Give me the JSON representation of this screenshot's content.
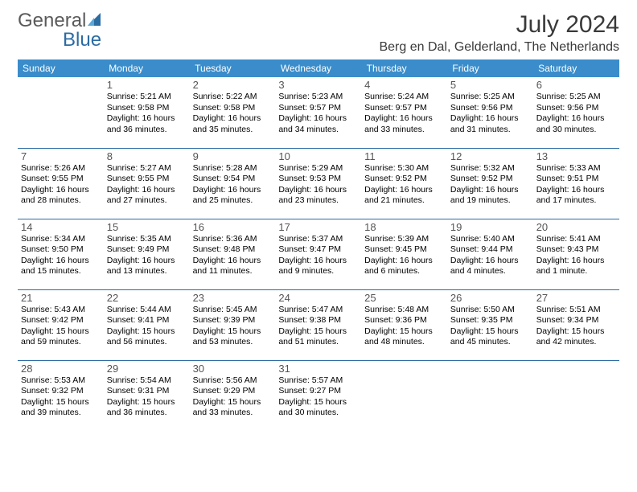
{
  "logo": {
    "gray": "General",
    "blue": "Blue"
  },
  "title": "July 2024",
  "location": "Berg en Dal, Gelderland, The Netherlands",
  "colors": {
    "header_bg": "#3a8dca",
    "header_text": "#ffffff",
    "sep_line": "#2b6ca3",
    "logo_gray": "#5a5a5a",
    "logo_blue": "#2b6ca3"
  },
  "day_names": [
    "Sunday",
    "Monday",
    "Tuesday",
    "Wednesday",
    "Thursday",
    "Friday",
    "Saturday"
  ],
  "weeks": [
    [
      null,
      {
        "n": "1",
        "sr": "5:21 AM",
        "ss": "9:58 PM",
        "dl": "16 hours and 36 minutes."
      },
      {
        "n": "2",
        "sr": "5:22 AM",
        "ss": "9:58 PM",
        "dl": "16 hours and 35 minutes."
      },
      {
        "n": "3",
        "sr": "5:23 AM",
        "ss": "9:57 PM",
        "dl": "16 hours and 34 minutes."
      },
      {
        "n": "4",
        "sr": "5:24 AM",
        "ss": "9:57 PM",
        "dl": "16 hours and 33 minutes."
      },
      {
        "n": "5",
        "sr": "5:25 AM",
        "ss": "9:56 PM",
        "dl": "16 hours and 31 minutes."
      },
      {
        "n": "6",
        "sr": "5:25 AM",
        "ss": "9:56 PM",
        "dl": "16 hours and 30 minutes."
      }
    ],
    [
      {
        "n": "7",
        "sr": "5:26 AM",
        "ss": "9:55 PM",
        "dl": "16 hours and 28 minutes."
      },
      {
        "n": "8",
        "sr": "5:27 AM",
        "ss": "9:55 PM",
        "dl": "16 hours and 27 minutes."
      },
      {
        "n": "9",
        "sr": "5:28 AM",
        "ss": "9:54 PM",
        "dl": "16 hours and 25 minutes."
      },
      {
        "n": "10",
        "sr": "5:29 AM",
        "ss": "9:53 PM",
        "dl": "16 hours and 23 minutes."
      },
      {
        "n": "11",
        "sr": "5:30 AM",
        "ss": "9:52 PM",
        "dl": "16 hours and 21 minutes."
      },
      {
        "n": "12",
        "sr": "5:32 AM",
        "ss": "9:52 PM",
        "dl": "16 hours and 19 minutes."
      },
      {
        "n": "13",
        "sr": "5:33 AM",
        "ss": "9:51 PM",
        "dl": "16 hours and 17 minutes."
      }
    ],
    [
      {
        "n": "14",
        "sr": "5:34 AM",
        "ss": "9:50 PM",
        "dl": "16 hours and 15 minutes."
      },
      {
        "n": "15",
        "sr": "5:35 AM",
        "ss": "9:49 PM",
        "dl": "16 hours and 13 minutes."
      },
      {
        "n": "16",
        "sr": "5:36 AM",
        "ss": "9:48 PM",
        "dl": "16 hours and 11 minutes."
      },
      {
        "n": "17",
        "sr": "5:37 AM",
        "ss": "9:47 PM",
        "dl": "16 hours and 9 minutes."
      },
      {
        "n": "18",
        "sr": "5:39 AM",
        "ss": "9:45 PM",
        "dl": "16 hours and 6 minutes."
      },
      {
        "n": "19",
        "sr": "5:40 AM",
        "ss": "9:44 PM",
        "dl": "16 hours and 4 minutes."
      },
      {
        "n": "20",
        "sr": "5:41 AM",
        "ss": "9:43 PM",
        "dl": "16 hours and 1 minute."
      }
    ],
    [
      {
        "n": "21",
        "sr": "5:43 AM",
        "ss": "9:42 PM",
        "dl": "15 hours and 59 minutes."
      },
      {
        "n": "22",
        "sr": "5:44 AM",
        "ss": "9:41 PM",
        "dl": "15 hours and 56 minutes."
      },
      {
        "n": "23",
        "sr": "5:45 AM",
        "ss": "9:39 PM",
        "dl": "15 hours and 53 minutes."
      },
      {
        "n": "24",
        "sr": "5:47 AM",
        "ss": "9:38 PM",
        "dl": "15 hours and 51 minutes."
      },
      {
        "n": "25",
        "sr": "5:48 AM",
        "ss": "9:36 PM",
        "dl": "15 hours and 48 minutes."
      },
      {
        "n": "26",
        "sr": "5:50 AM",
        "ss": "9:35 PM",
        "dl": "15 hours and 45 minutes."
      },
      {
        "n": "27",
        "sr": "5:51 AM",
        "ss": "9:34 PM",
        "dl": "15 hours and 42 minutes."
      }
    ],
    [
      {
        "n": "28",
        "sr": "5:53 AM",
        "ss": "9:32 PM",
        "dl": "15 hours and 39 minutes."
      },
      {
        "n": "29",
        "sr": "5:54 AM",
        "ss": "9:31 PM",
        "dl": "15 hours and 36 minutes."
      },
      {
        "n": "30",
        "sr": "5:56 AM",
        "ss": "9:29 PM",
        "dl": "15 hours and 33 minutes."
      },
      {
        "n": "31",
        "sr": "5:57 AM",
        "ss": "9:27 PM",
        "dl": "15 hours and 30 minutes."
      },
      null,
      null,
      null
    ]
  ],
  "labels": {
    "sunrise": "Sunrise: ",
    "sunset": "Sunset: ",
    "daylight": "Daylight: "
  }
}
